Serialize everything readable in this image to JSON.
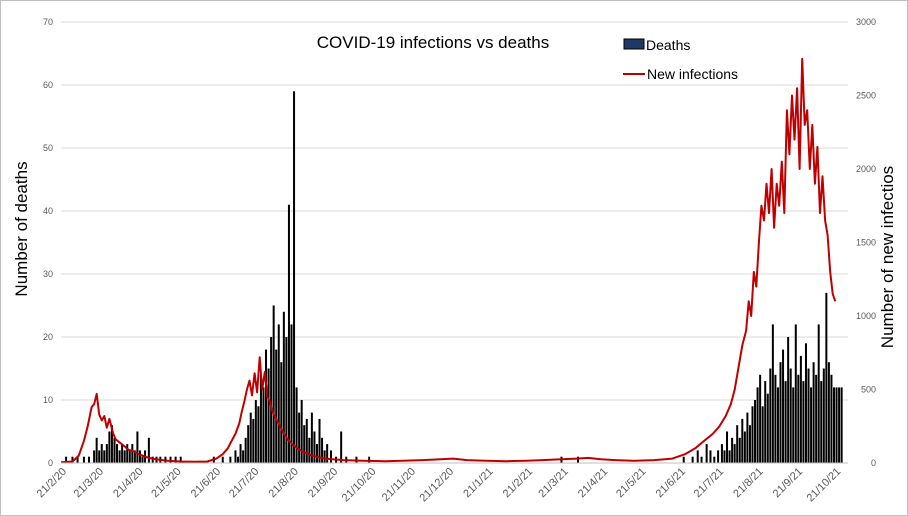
{
  "chart_data": {
    "type": "bar+line",
    "title": "COVID-19 infections vs deaths",
    "ylabel_left": "Number of deaths",
    "ylabel_right": "Number of new infectios",
    "ylim_left": [
      0,
      70
    ],
    "yticks_left": [
      "0",
      "10",
      "20",
      "30",
      "40",
      "50",
      "60",
      "70"
    ],
    "ylim_right": [
      0,
      3000
    ],
    "yticks_right": [
      "0",
      "500",
      "1000",
      "1500",
      "2000",
      "2500",
      "3000"
    ],
    "x_start": "21/2/20",
    "x_end": "31/10/21",
    "x_tick_labels": [
      "21/2/20",
      "21/3/20",
      "21/4/20",
      "21/5/20",
      "21/6/20",
      "21/7/20",
      "21/8/20",
      "21/9/20",
      "21/10/20",
      "21/11/20",
      "21/12/20",
      "21/1/21",
      "21/2/21",
      "21/3/21",
      "21/4/21",
      "21/5/21",
      "21/6/21",
      "21/7/21",
      "21/8/21",
      "21/9/21",
      "21/10/21"
    ],
    "grid": "horizontal",
    "legend_position": "top-right",
    "series": [
      {
        "name": "Deaths",
        "kind": "bar",
        "axis": "left",
        "color": "#000000",
        "legend_color": "#1f3864",
        "points": [
          [
            "2020-02-25",
            1
          ],
          [
            "2020-03-01",
            1
          ],
          [
            "2020-03-05",
            1
          ],
          [
            "2020-03-10",
            1
          ],
          [
            "2020-03-14",
            1
          ],
          [
            "2020-03-18",
            2
          ],
          [
            "2020-03-20",
            4
          ],
          [
            "2020-03-22",
            2
          ],
          [
            "2020-03-24",
            3
          ],
          [
            "2020-03-26",
            2
          ],
          [
            "2020-03-28",
            3
          ],
          [
            "2020-03-30",
            5
          ],
          [
            "2020-04-01",
            6
          ],
          [
            "2020-04-03",
            4
          ],
          [
            "2020-04-05",
            3
          ],
          [
            "2020-04-07",
            2
          ],
          [
            "2020-04-09",
            3
          ],
          [
            "2020-04-11",
            2
          ],
          [
            "2020-04-13",
            3
          ],
          [
            "2020-04-15",
            2
          ],
          [
            "2020-04-17",
            3
          ],
          [
            "2020-04-19",
            2
          ],
          [
            "2020-04-21",
            5
          ],
          [
            "2020-04-23",
            2
          ],
          [
            "2020-04-25",
            1
          ],
          [
            "2020-04-27",
            2
          ],
          [
            "2020-04-30",
            4
          ],
          [
            "2020-05-03",
            1
          ],
          [
            "2020-05-06",
            1
          ],
          [
            "2020-05-09",
            1
          ],
          [
            "2020-05-13",
            1
          ],
          [
            "2020-05-17",
            1
          ],
          [
            "2020-05-21",
            1
          ],
          [
            "2020-05-25",
            1
          ],
          [
            "2020-06-20",
            1
          ],
          [
            "2020-06-27",
            1
          ],
          [
            "2020-07-03",
            1
          ],
          [
            "2020-07-07",
            2
          ],
          [
            "2020-07-09",
            1
          ],
          [
            "2020-07-11",
            3
          ],
          [
            "2020-07-13",
            2
          ],
          [
            "2020-07-15",
            4
          ],
          [
            "2020-07-17",
            6
          ],
          [
            "2020-07-19",
            8
          ],
          [
            "2020-07-21",
            7
          ],
          [
            "2020-07-23",
            10
          ],
          [
            "2020-07-25",
            9
          ],
          [
            "2020-07-27",
            14
          ],
          [
            "2020-07-29",
            12
          ],
          [
            "2020-07-31",
            18
          ],
          [
            "2020-08-02",
            15
          ],
          [
            "2020-08-04",
            20
          ],
          [
            "2020-08-06",
            25
          ],
          [
            "2020-08-08",
            18
          ],
          [
            "2020-08-10",
            22
          ],
          [
            "2020-08-12",
            16
          ],
          [
            "2020-08-14",
            24
          ],
          [
            "2020-08-16",
            20
          ],
          [
            "2020-08-18",
            41
          ],
          [
            "2020-08-20",
            22
          ],
          [
            "2020-08-22",
            59
          ],
          [
            "2020-08-24",
            12
          ],
          [
            "2020-08-26",
            8
          ],
          [
            "2020-08-28",
            10
          ],
          [
            "2020-08-30",
            6
          ],
          [
            "2020-09-01",
            7
          ],
          [
            "2020-09-03",
            4
          ],
          [
            "2020-09-05",
            8
          ],
          [
            "2020-09-07",
            5
          ],
          [
            "2020-09-09",
            3
          ],
          [
            "2020-09-11",
            7
          ],
          [
            "2020-09-13",
            4
          ],
          [
            "2020-09-15",
            2
          ],
          [
            "2020-09-17",
            3
          ],
          [
            "2020-09-20",
            2
          ],
          [
            "2020-09-24",
            1
          ],
          [
            "2020-09-28",
            5
          ],
          [
            "2020-10-02",
            1
          ],
          [
            "2020-10-10",
            1
          ],
          [
            "2020-10-20",
            1
          ],
          [
            "2021-03-20",
            1
          ],
          [
            "2021-04-02",
            1
          ],
          [
            "2021-06-24",
            1
          ],
          [
            "2021-07-01",
            1
          ],
          [
            "2021-07-05",
            2
          ],
          [
            "2021-07-08",
            1
          ],
          [
            "2021-07-12",
            3
          ],
          [
            "2021-07-15",
            2
          ],
          [
            "2021-07-18",
            1
          ],
          [
            "2021-07-21",
            2
          ],
          [
            "2021-07-24",
            3
          ],
          [
            "2021-07-26",
            2
          ],
          [
            "2021-07-28",
            5
          ],
          [
            "2021-07-30",
            2
          ],
          [
            "2021-08-01",
            4
          ],
          [
            "2021-08-03",
            3
          ],
          [
            "2021-08-05",
            6
          ],
          [
            "2021-08-07",
            4
          ],
          [
            "2021-08-09",
            7
          ],
          [
            "2021-08-11",
            5
          ],
          [
            "2021-08-13",
            8
          ],
          [
            "2021-08-15",
            6
          ],
          [
            "2021-08-17",
            9
          ],
          [
            "2021-08-19",
            10
          ],
          [
            "2021-08-21",
            12
          ],
          [
            "2021-08-23",
            14
          ],
          [
            "2021-08-25",
            9
          ],
          [
            "2021-08-27",
            13
          ],
          [
            "2021-08-29",
            11
          ],
          [
            "2021-08-31",
            15
          ],
          [
            "2021-09-02",
            22
          ],
          [
            "2021-09-04",
            14
          ],
          [
            "2021-09-06",
            12
          ],
          [
            "2021-09-08",
            16
          ],
          [
            "2021-09-10",
            18
          ],
          [
            "2021-09-12",
            13
          ],
          [
            "2021-09-14",
            20
          ],
          [
            "2021-09-16",
            15
          ],
          [
            "2021-09-18",
            12
          ],
          [
            "2021-09-20",
            22
          ],
          [
            "2021-09-22",
            14
          ],
          [
            "2021-09-24",
            17
          ],
          [
            "2021-09-26",
            13
          ],
          [
            "2021-09-28",
            19
          ],
          [
            "2021-09-30",
            15
          ],
          [
            "2021-10-02",
            12
          ],
          [
            "2021-10-04",
            16
          ],
          [
            "2021-10-06",
            14
          ],
          [
            "2021-10-08",
            22
          ],
          [
            "2021-10-10",
            13
          ],
          [
            "2021-10-12",
            15
          ],
          [
            "2021-10-14",
            27
          ],
          [
            "2021-10-16",
            16
          ],
          [
            "2021-10-18",
            14
          ],
          [
            "2021-10-20",
            12
          ],
          [
            "2021-10-22",
            12
          ],
          [
            "2021-10-24",
            12
          ],
          [
            "2021-10-26",
            12
          ]
        ]
      },
      {
        "name": "New infections",
        "kind": "line",
        "axis": "right",
        "color": "#c00000",
        "points": [
          [
            "2020-02-21",
            5
          ],
          [
            "2020-03-01",
            10
          ],
          [
            "2020-03-06",
            50
          ],
          [
            "2020-03-10",
            150
          ],
          [
            "2020-03-13",
            250
          ],
          [
            "2020-03-16",
            380
          ],
          [
            "2020-03-18",
            400
          ],
          [
            "2020-03-20",
            470
          ],
          [
            "2020-03-22",
            330
          ],
          [
            "2020-03-24",
            290
          ],
          [
            "2020-03-26",
            320
          ],
          [
            "2020-03-28",
            240
          ],
          [
            "2020-03-30",
            300
          ],
          [
            "2020-04-02",
            200
          ],
          [
            "2020-04-04",
            160
          ],
          [
            "2020-04-07",
            140
          ],
          [
            "2020-04-10",
            120
          ],
          [
            "2020-04-14",
            90
          ],
          [
            "2020-04-18",
            80
          ],
          [
            "2020-04-22",
            60
          ],
          [
            "2020-04-28",
            40
          ],
          [
            "2020-05-05",
            25
          ],
          [
            "2020-05-15",
            15
          ],
          [
            "2020-05-25",
            10
          ],
          [
            "2020-06-05",
            8
          ],
          [
            "2020-06-15",
            10
          ],
          [
            "2020-06-22",
            30
          ],
          [
            "2020-06-27",
            60
          ],
          [
            "2020-07-01",
            100
          ],
          [
            "2020-07-04",
            150
          ],
          [
            "2020-07-07",
            200
          ],
          [
            "2020-07-10",
            270
          ],
          [
            "2020-07-12",
            350
          ],
          [
            "2020-07-14",
            420
          ],
          [
            "2020-07-16",
            500
          ],
          [
            "2020-07-18",
            560
          ],
          [
            "2020-07-20",
            460
          ],
          [
            "2020-07-22",
            610
          ],
          [
            "2020-07-24",
            480
          ],
          [
            "2020-07-26",
            720
          ],
          [
            "2020-07-28",
            500
          ],
          [
            "2020-07-30",
            620
          ],
          [
            "2020-08-01",
            450
          ],
          [
            "2020-08-03",
            420
          ],
          [
            "2020-08-05",
            350
          ],
          [
            "2020-08-08",
            300
          ],
          [
            "2020-08-11",
            250
          ],
          [
            "2020-08-14",
            200
          ],
          [
            "2020-08-18",
            150
          ],
          [
            "2020-08-23",
            110
          ],
          [
            "2020-08-28",
            80
          ],
          [
            "2020-09-05",
            50
          ],
          [
            "2020-09-15",
            30
          ],
          [
            "2020-09-30",
            20
          ],
          [
            "2020-10-15",
            15
          ],
          [
            "2020-11-01",
            12
          ],
          [
            "2020-11-15",
            15
          ],
          [
            "2020-12-01",
            20
          ],
          [
            "2020-12-15",
            25
          ],
          [
            "2020-12-25",
            30
          ],
          [
            "2021-01-05",
            20
          ],
          [
            "2021-01-20",
            15
          ],
          [
            "2021-02-05",
            12
          ],
          [
            "2021-02-20",
            15
          ],
          [
            "2021-03-05",
            20
          ],
          [
            "2021-03-20",
            25
          ],
          [
            "2021-04-01",
            30
          ],
          [
            "2021-04-10",
            35
          ],
          [
            "2021-04-20",
            25
          ],
          [
            "2021-05-01",
            20
          ],
          [
            "2021-05-15",
            15
          ],
          [
            "2021-06-01",
            20
          ],
          [
            "2021-06-15",
            30
          ],
          [
            "2021-06-25",
            60
          ],
          [
            "2021-07-03",
            100
          ],
          [
            "2021-07-10",
            150
          ],
          [
            "2021-07-17",
            200
          ],
          [
            "2021-07-22",
            250
          ],
          [
            "2021-07-27",
            320
          ],
          [
            "2021-07-31",
            400
          ],
          [
            "2021-08-03",
            500
          ],
          [
            "2021-08-06",
            650
          ],
          [
            "2021-08-09",
            800
          ],
          [
            "2021-08-12",
            900
          ],
          [
            "2021-08-14",
            1100
          ],
          [
            "2021-08-16",
            1000
          ],
          [
            "2021-08-18",
            1300
          ],
          [
            "2021-08-20",
            1200
          ],
          [
            "2021-08-22",
            1500
          ],
          [
            "2021-08-24",
            1750
          ],
          [
            "2021-08-26",
            1650
          ],
          [
            "2021-08-28",
            1900
          ],
          [
            "2021-08-30",
            1700
          ],
          [
            "2021-09-01",
            2000
          ],
          [
            "2021-09-03",
            1600
          ],
          [
            "2021-09-05",
            1900
          ],
          [
            "2021-09-07",
            1750
          ],
          [
            "2021-09-09",
            2050
          ],
          [
            "2021-09-11",
            1700
          ],
          [
            "2021-09-13",
            2400
          ],
          [
            "2021-09-15",
            2100
          ],
          [
            "2021-09-17",
            2500
          ],
          [
            "2021-09-19",
            2200
          ],
          [
            "2021-09-21",
            2550
          ],
          [
            "2021-09-23",
            2000
          ],
          [
            "2021-09-25",
            2750
          ],
          [
            "2021-09-27",
            2300
          ],
          [
            "2021-09-29",
            2400
          ],
          [
            "2021-10-01",
            2000
          ],
          [
            "2021-10-03",
            2300
          ],
          [
            "2021-10-05",
            1900
          ],
          [
            "2021-10-07",
            2150
          ],
          [
            "2021-10-09",
            1700
          ],
          [
            "2021-10-11",
            1950
          ],
          [
            "2021-10-13",
            1650
          ],
          [
            "2021-10-15",
            1550
          ],
          [
            "2021-10-17",
            1300
          ],
          [
            "2021-10-19",
            1150
          ],
          [
            "2021-10-21",
            1100
          ]
        ]
      }
    ]
  }
}
